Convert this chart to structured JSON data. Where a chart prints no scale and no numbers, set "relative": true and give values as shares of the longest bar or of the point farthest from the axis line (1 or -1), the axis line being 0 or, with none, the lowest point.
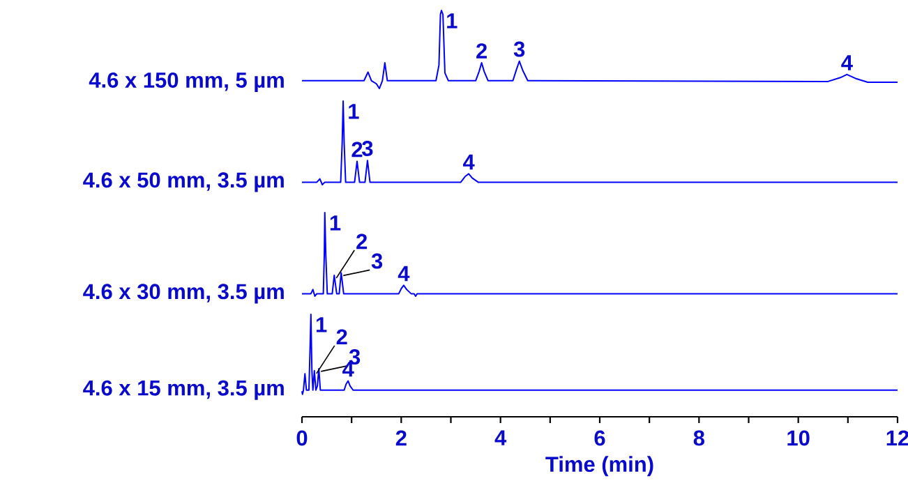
{
  "chart_data": [
    {
      "type": "line",
      "relative": true,
      "ylabel": "4.6 x 150 mm, 5 µm",
      "xlim": [
        0,
        12
      ],
      "tick_labels": false,
      "series": [
        {
          "color": "#0000ff",
          "x": [
            0,
            1.25,
            1.33,
            1.4,
            1.5,
            1.56,
            1.62,
            1.67,
            1.72,
            2.7,
            2.76,
            2.79,
            2.81,
            2.84,
            2.88,
            2.95,
            3.5,
            3.57,
            3.62,
            3.67,
            3.75,
            4.25,
            4.32,
            4.38,
            4.45,
            4.55,
            10.6,
            10.85,
            10.98,
            11.15,
            11.4,
            12
          ],
          "values": [
            0.1,
            0.1,
            0.21,
            0.1,
            0.06,
            0,
            0.1,
            0.33,
            0.1,
            0.1,
            0.3,
            0.95,
            1,
            0.95,
            0.2,
            0.1,
            0.1,
            0.22,
            0.33,
            0.22,
            0.1,
            0.1,
            0.24,
            0.35,
            0.23,
            0.1,
            0.09,
            0.14,
            0.18,
            0.13,
            0.08,
            0.08
          ]
        }
      ],
      "annotations": [
        {
          "text": "1",
          "x": 2.81,
          "y": 1
        },
        {
          "text": "2",
          "x": 3.62,
          "y": 0.33
        },
        {
          "text": "3",
          "x": 4.38,
          "y": 0.35
        },
        {
          "text": "4",
          "x": 10.98,
          "y": 0.18
        }
      ]
    },
    {
      "type": "line",
      "relative": true,
      "ylabel": "4.6 x 50 mm, 3.5 µm",
      "xlim": [
        0,
        12
      ],
      "tick_labels": false,
      "series": [
        {
          "color": "#0000ff",
          "x": [
            0,
            0.3,
            0.36,
            0.41,
            0.46,
            0.78,
            0.81,
            0.83,
            0.85,
            0.88,
            1.06,
            1.11,
            1.16,
            1.27,
            1.32,
            1.37,
            3.2,
            3.29,
            3.36,
            3.43,
            3.55,
            12
          ],
          "values": [
            0.03,
            0.03,
            0.07,
            0,
            0.03,
            0.03,
            0.5,
            1,
            0.5,
            0.03,
            0.03,
            0.28,
            0.03,
            0.03,
            0.29,
            0.03,
            0.03,
            0.1,
            0.13,
            0.08,
            0.03,
            0.03
          ]
        }
      ],
      "annotations": [
        {
          "text": "1",
          "x": 0.83,
          "y": 1
        },
        {
          "text": "2",
          "x": 1.11,
          "y": 0.28
        },
        {
          "text": "3",
          "x": 1.32,
          "y": 0.29
        },
        {
          "text": "4",
          "x": 3.36,
          "y": 0.13
        }
      ]
    },
    {
      "type": "line",
      "relative": true,
      "ylabel": "4.6 x 30 mm, 3.5 µm",
      "xlim": [
        0,
        12
      ],
      "tick_labels": false,
      "series": [
        {
          "color": "#0000ff",
          "x": [
            0,
            0.18,
            0.22,
            0.26,
            0.3,
            0.43,
            0.45,
            0.46,
            0.48,
            0.51,
            0.61,
            0.65,
            0.7,
            0.75,
            0.79,
            0.84,
            1.95,
            2.0,
            2.05,
            2.11,
            2.2,
            2.26,
            2.29,
            2.32,
            12
          ],
          "values": [
            0.03,
            0.03,
            0.08,
            0,
            0.03,
            0.03,
            0.5,
            1,
            0.5,
            0.03,
            0.03,
            0.25,
            0.03,
            0.03,
            0.28,
            0.03,
            0.03,
            0.09,
            0.13,
            0.08,
            0.03,
            0.03,
            0,
            0.03,
            0.03
          ]
        }
      ],
      "annotations": [
        {
          "text": "1",
          "x": 0.46,
          "y": 1
        },
        {
          "text": "2",
          "x": 0.65,
          "y": 0.25
        },
        {
          "text": "3",
          "x": 0.79,
          "y": 0.28
        },
        {
          "text": "4",
          "x": 2.05,
          "y": 0.13
        }
      ]
    },
    {
      "type": "line",
      "relative": true,
      "ylabel": "4.6 x 15 mm, 3.5 µm",
      "xlabel": "Time (min)",
      "xlim": [
        0,
        12
      ],
      "tick_labels": "x",
      "xticks": [
        0,
        {
          "value": 1,
          "label": null
        },
        2,
        {
          "value": 3,
          "label": null
        },
        4,
        {
          "value": 5,
          "label": null
        },
        6,
        {
          "value": 7,
          "label": null
        },
        8,
        {
          "value": 9,
          "label": null
        },
        10,
        {
          "value": 11,
          "label": null
        },
        12
      ],
      "series": [
        {
          "color": "#0000ff",
          "x": [
            0,
            0.01,
            0.03,
            0.06,
            0.09,
            0.14,
            0.16,
            0.18,
            0.2,
            0.22,
            0.25,
            0.28,
            0.31,
            0.34,
            0.37,
            0.85,
            0.89,
            0.93,
            0.97,
            1.03,
            12
          ],
          "values": [
            0.25,
            0.22,
            0.26,
            0.42,
            0.26,
            0.26,
            0.61,
            1,
            0.45,
            0.26,
            0.45,
            0.26,
            0.3,
            0.47,
            0.26,
            0.26,
            0.32,
            0.35,
            0.3,
            0.26,
            0.26
          ]
        }
      ],
      "annotations": [
        {
          "text": "1",
          "x": 0.18,
          "y": 1
        },
        {
          "text": "2",
          "x": 0.25,
          "y": 0.45
        },
        {
          "text": "3",
          "x": 0.34,
          "y": 0.47
        },
        {
          "text": "4",
          "x": 0.93,
          "y": 0.35
        }
      ]
    }
  ]
}
